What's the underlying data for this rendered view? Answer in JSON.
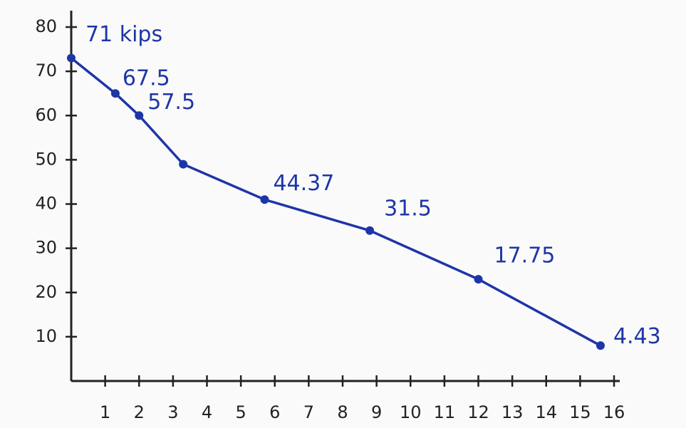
{
  "chart_data": {
    "type": "line",
    "x": [
      0,
      1.3,
      2,
      3.3,
      5.7,
      8.8,
      12,
      15.6
    ],
    "series": [
      {
        "color": "#1e35a8",
        "values": [
          73,
          65,
          60,
          49,
          41,
          34,
          23,
          8
        ]
      }
    ],
    "annotations": [
      "71 kips",
      "67.5",
      "57.5",
      "44.37",
      "31.5",
      "17.75",
      "4.43"
    ],
    "xlim": [
      0,
      16
    ],
    "xticks": [
      1,
      2,
      3,
      4,
      5,
      6,
      7,
      8,
      9,
      10,
      11,
      12,
      13,
      14,
      15,
      16
    ],
    "ylim": [
      0,
      80
    ],
    "yticks": [
      10,
      20,
      30,
      40,
      50,
      60,
      70,
      80
    ],
    "grid": false
  }
}
